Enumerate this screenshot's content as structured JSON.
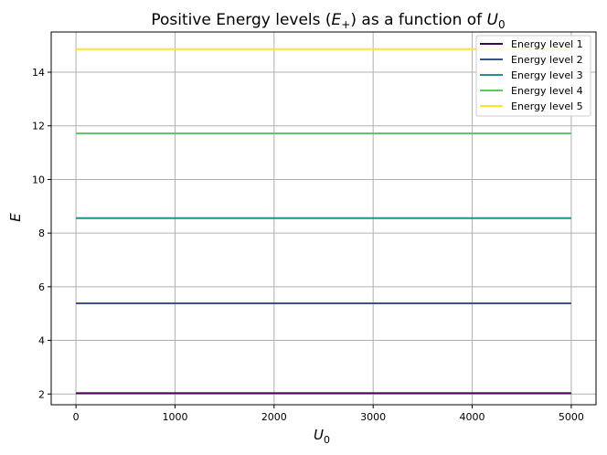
{
  "chart_data": {
    "type": "line",
    "title_parts": {
      "pre": "Positive Energy levels (",
      "var": "E",
      "sub": "+",
      "post": ") as a function of ",
      "var2": "U",
      "sub2": "0"
    },
    "xlabel": {
      "var": "U",
      "sub": "0"
    },
    "ylabel": "E",
    "xlim": [
      -250,
      5250
    ],
    "ylim": [
      1.6,
      15.5
    ],
    "xticks": [
      0,
      1000,
      2000,
      3000,
      4000,
      5000
    ],
    "yticks": [
      2,
      4,
      6,
      8,
      10,
      12,
      14
    ],
    "grid": true,
    "legend_position": "top-right",
    "series": [
      {
        "name": "Energy level 1",
        "color": "#440154",
        "x": [
          0,
          5000
        ],
        "y": [
          2.03,
          2.03
        ]
      },
      {
        "name": "Energy level 2",
        "color": "#3b528b",
        "x": [
          0,
          5000
        ],
        "y": [
          5.38,
          5.38
        ]
      },
      {
        "name": "Energy level 3",
        "color": "#21918c",
        "x": [
          0,
          5000
        ],
        "y": [
          8.56,
          8.56
        ]
      },
      {
        "name": "Energy level 4",
        "color": "#5ec962",
        "x": [
          0,
          5000
        ],
        "y": [
          11.72,
          11.72
        ]
      },
      {
        "name": "Energy level 5",
        "color": "#fde725",
        "x": [
          0,
          5000
        ],
        "y": [
          14.86,
          14.86
        ]
      }
    ]
  }
}
